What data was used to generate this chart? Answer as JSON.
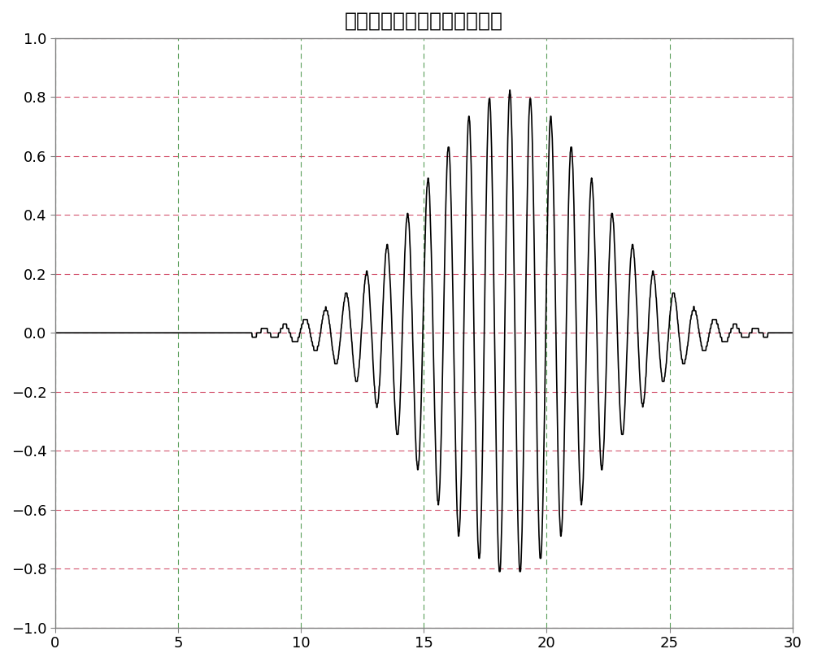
{
  "title": "等波纹滤波后的雷达呼吸信号",
  "xlim": [
    0,
    30
  ],
  "ylim": [
    -1,
    1
  ],
  "xticks": [
    0,
    5,
    10,
    15,
    20,
    25,
    30
  ],
  "yticks": [
    -1,
    -0.8,
    -0.6,
    -0.4,
    -0.2,
    0,
    0.2,
    0.4,
    0.6,
    0.8,
    1
  ],
  "line_color": "#000000",
  "grid_color_major": "#808080",
  "grid_color_minor": "#ff69b4",
  "bg_color": "#ffffff",
  "title_fontsize": 18,
  "tick_fontsize": 13
}
